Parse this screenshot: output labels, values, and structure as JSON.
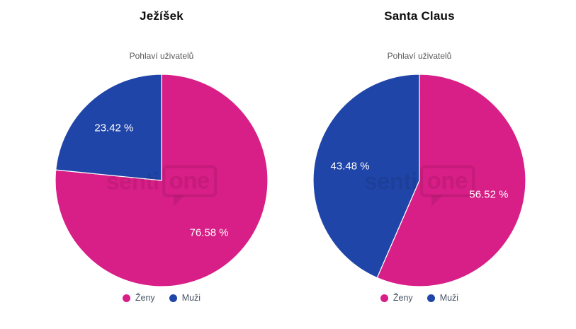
{
  "watermark": {
    "text": "senti",
    "bubble_text": "one"
  },
  "colors": {
    "zeny_pink": "#D81E87",
    "muzi_blue": "#2045A8",
    "slice_label_text": "#FFFFFF",
    "legend_text": "#4A5568",
    "subtitle_text": "#595959",
    "title_text": "#0D0D0D",
    "slice_border": "#FFFFFF"
  },
  "chart_data": [
    {
      "type": "pie",
      "title": "Ježíšek",
      "subtitle": "Pohlaví uživatelů",
      "start_angle_deg": 0,
      "direction": "clockwise",
      "legend_position": "bottom",
      "slices": [
        {
          "label": "Ženy",
          "value": 76.58,
          "display": "76.58 %",
          "color": "#D81E87"
        },
        {
          "label": "Muži",
          "value": 23.42,
          "display": "23.42 %",
          "color": "#2045A8"
        }
      ]
    },
    {
      "type": "pie",
      "title": "Santa Claus",
      "subtitle": "Pohlaví uživatelů",
      "start_angle_deg": 0,
      "direction": "clockwise",
      "legend_position": "bottom",
      "slices": [
        {
          "label": "Ženy",
          "value": 56.52,
          "display": "56.52 %",
          "color": "#D81E87"
        },
        {
          "label": "Muži",
          "value": 43.48,
          "display": "43.48 %",
          "color": "#2045A8"
        }
      ]
    }
  ]
}
